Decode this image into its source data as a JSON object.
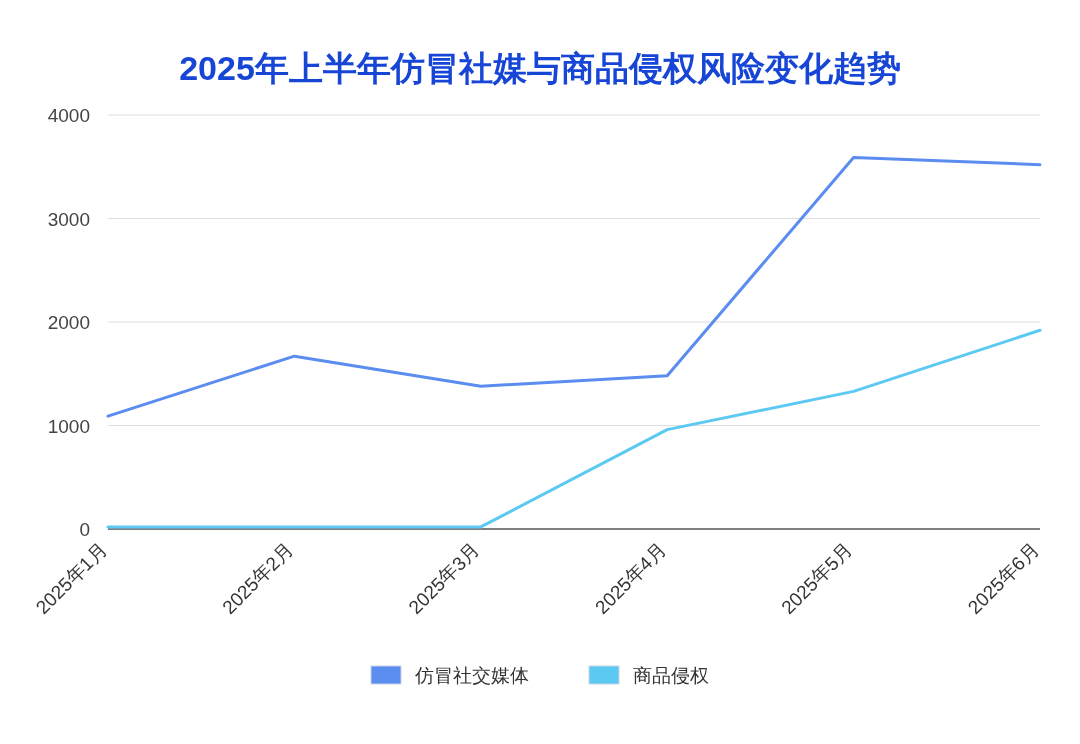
{
  "chart_data": {
    "type": "line",
    "title": "2025年上半年仿冒社媒与商品侵权风险变化趋势",
    "categories": [
      "2025年1月",
      "2025年2月",
      "2025年3月",
      "2025年4月",
      "2025年5月",
      "2025年6月"
    ],
    "series": [
      {
        "name": "仿冒社交媒体",
        "color": "#5b8cf0",
        "values": [
          1090,
          1670,
          1380,
          1480,
          3590,
          3520
        ]
      },
      {
        "name": "商品侵权",
        "color": "#5cc9f2",
        "values": [
          20,
          20,
          20,
          960,
          1330,
          1920
        ]
      }
    ],
    "ylim": [
      0,
      4000
    ],
    "yticks": [
      0,
      1000,
      2000,
      3000,
      4000
    ],
    "grid": "y",
    "legend": "bottom",
    "marker": "none",
    "line_style": "solid"
  }
}
